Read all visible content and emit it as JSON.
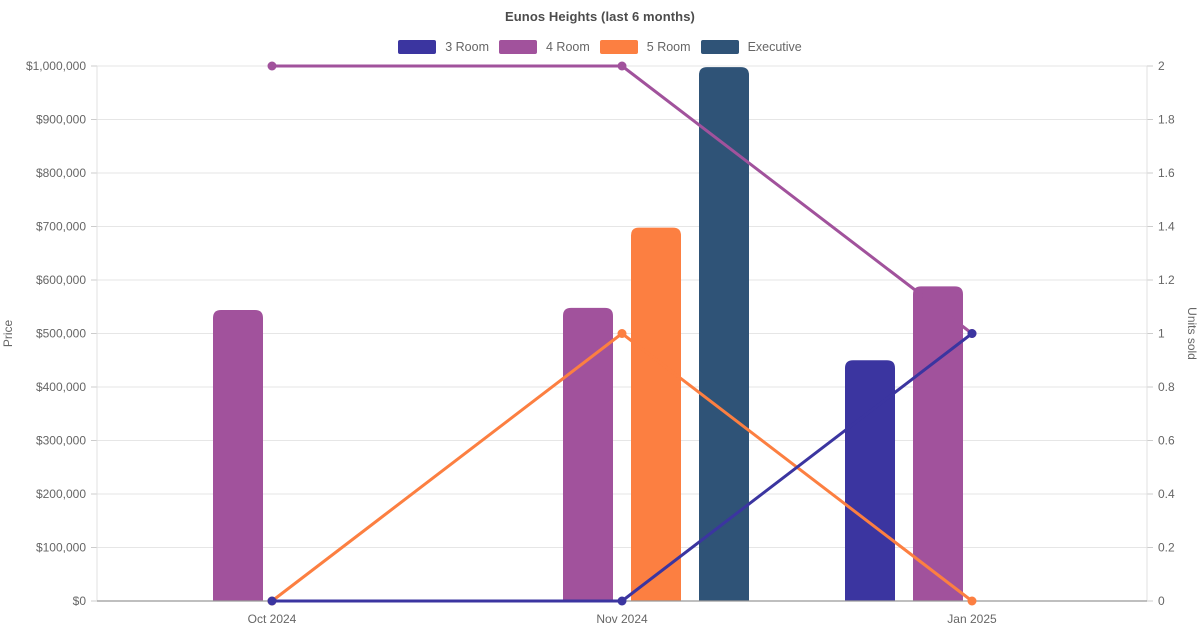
{
  "chart_data": {
    "type": "bar+line",
    "title": "Eunos Heights (last 6 months)",
    "categories": [
      "Oct 2024",
      "Nov 2024",
      "Jan 2025"
    ],
    "legend": [
      {
        "label": "3 Room",
        "color": "#3b35a0"
      },
      {
        "label": "4 Room",
        "color": "#a1529c"
      },
      {
        "label": "5 Room",
        "color": "#fc7f41"
      },
      {
        "label": "Executive",
        "color": "#2f5377"
      }
    ],
    "bar_series": [
      {
        "name": "3 Room",
        "color": "#3b35a0",
        "values": [
          null,
          null,
          450000
        ]
      },
      {
        "name": "4 Room",
        "color": "#a1529c",
        "values": [
          544000,
          548000,
          588000
        ]
      },
      {
        "name": "5 Room",
        "color": "#fc7f41",
        "values": [
          null,
          698000,
          null
        ]
      },
      {
        "name": "Executive",
        "color": "#2f5377",
        "values": [
          null,
          998000,
          null
        ]
      }
    ],
    "line_series": [
      {
        "name": "4 Room",
        "color": "#a1529c",
        "values": [
          2,
          2,
          1
        ]
      },
      {
        "name": "5 Room",
        "color": "#fc7f41",
        "values": [
          0,
          1,
          0
        ]
      },
      {
        "name": "3 Room",
        "color": "#3b35a0",
        "values": [
          0,
          0,
          1
        ]
      }
    ],
    "y_left": {
      "label": "Price",
      "min": 0,
      "max": 1000000,
      "step": 100000,
      "tick_prefix": "$"
    },
    "y_right": {
      "label": "Units sold",
      "min": 0,
      "max": 2,
      "step": 0.2
    },
    "axes": {
      "bars_use": "left",
      "lines_use": "right"
    },
    "grid": true,
    "legend_position": "top",
    "colors": {
      "grid_line": "#e6e6e6",
      "axis_side_line": "#e0e0e0",
      "axis_bottom_line": "#999999",
      "tick_mark": "#cccccc",
      "tick_text": "#666666",
      "title_text": "#4c4c4c"
    }
  }
}
